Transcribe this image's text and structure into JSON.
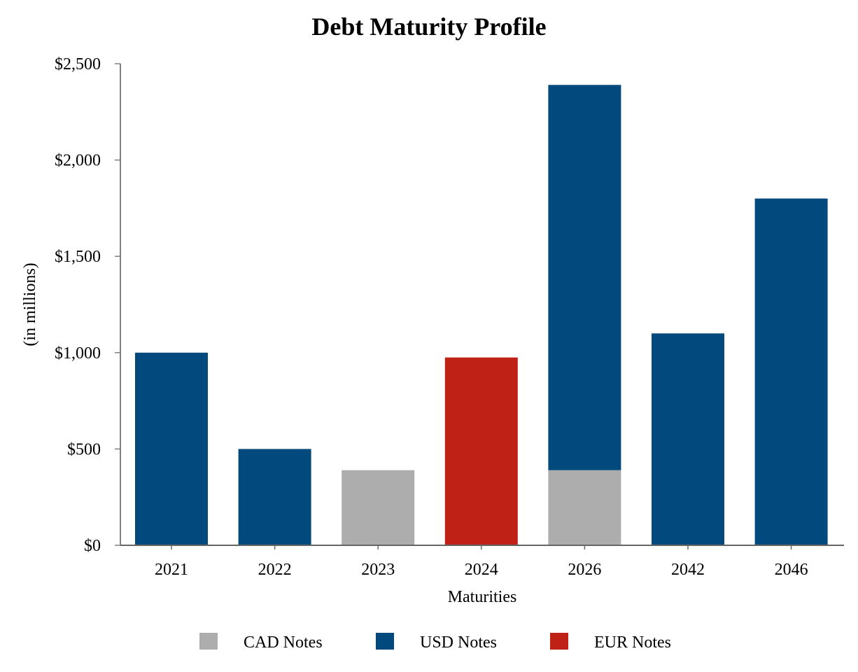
{
  "chart_data": {
    "type": "bar",
    "stacked": true,
    "title": "Debt Maturity Profile",
    "xlabel": "Maturities",
    "ylabel": "(in millions)",
    "ylim": [
      0,
      2500
    ],
    "yticks": [
      0,
      500,
      1000,
      1500,
      2000,
      2500
    ],
    "ytick_labels": [
      "$0",
      "$500",
      "$1,000",
      "$1,500",
      "$2,000",
      "$2,500"
    ],
    "categories": [
      "2021",
      "2022",
      "2023",
      "2024",
      "2026",
      "2042",
      "2046"
    ],
    "series": [
      {
        "name": "CAD Notes",
        "color": "#ADADAD",
        "values": [
          0,
          0,
          390,
          0,
          390,
          0,
          0
        ]
      },
      {
        "name": "USD Notes",
        "color": "#02497E",
        "values": [
          1000,
          500,
          0,
          0,
          2000,
          1100,
          1800
        ]
      },
      {
        "name": "EUR Notes",
        "color": "#BF2116",
        "values": [
          0,
          0,
          0,
          975,
          0,
          0,
          0
        ]
      }
    ],
    "legend_position": "bottom-center",
    "grid": false
  }
}
